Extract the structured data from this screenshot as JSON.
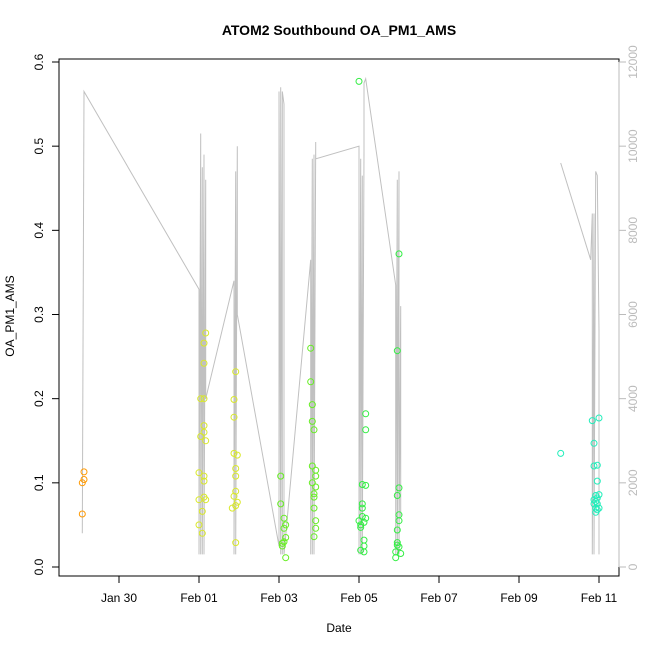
{
  "chart_data": {
    "type": "scatter",
    "title": "ATOM2 Southbound OA_PM1_AMS",
    "xlabel": "Date",
    "ylabel": "OA_PM1_AMS",
    "x_ticks": [
      "Jan 30",
      "Feb 01",
      "Feb 03",
      "Feb 05",
      "Feb 07",
      "Feb 09",
      "Feb 11"
    ],
    "xlim": [
      "Jan 28 12:00",
      "Feb 11 12:00"
    ],
    "ylim": [
      0,
      0.6
    ],
    "y_ticks": [
      "0.0",
      "0.1",
      "0.2",
      "0.3",
      "0.4",
      "0.5",
      "0.6"
    ],
    "y2_ticks": [
      "0",
      "2000",
      "4000",
      "6000",
      "8000",
      "10000",
      "12000"
    ],
    "y2lim": [
      0,
      12000
    ],
    "y2_color": "#bbbbbb",
    "line_color": "#c0c0c0",
    "series": [
      {
        "color": "#ff9900",
        "points": [
          [
            "Jan 29 02:00",
            0.063
          ],
          [
            "Jan 29 02:00",
            0.1
          ],
          [
            "Jan 29 03:00",
            0.104
          ],
          [
            "Jan 29 03:00",
            0.113
          ]
        ]
      },
      {
        "color": "#d9e82a",
        "points": [
          [
            "Feb 01 00:00",
            0.05
          ],
          [
            "Feb 01 00:00",
            0.08
          ],
          [
            "Feb 01 00:00",
            0.112
          ],
          [
            "Feb 01 01:00",
            0.155
          ],
          [
            "Feb 01 01:00",
            0.2
          ],
          [
            "Feb 01 02:00",
            0.04
          ],
          [
            "Feb 01 02:00",
            0.066
          ],
          [
            "Feb 01 03:00",
            0.083
          ],
          [
            "Feb 01 03:00",
            0.102
          ],
          [
            "Feb 01 03:00",
            0.108
          ],
          [
            "Feb 01 03:00",
            0.16
          ],
          [
            "Feb 01 03:00",
            0.168
          ],
          [
            "Feb 01 03:00",
            0.2
          ],
          [
            "Feb 01 03:00",
            0.242
          ],
          [
            "Feb 01 03:00",
            0.266
          ],
          [
            "Feb 01 04:00",
            0.278
          ],
          [
            "Feb 01 04:00",
            0.15
          ],
          [
            "Feb 01 04:00",
            0.08
          ],
          [
            "Feb 01 20:00",
            0.07
          ],
          [
            "Feb 01 21:00",
            0.084
          ],
          [
            "Feb 01 21:00",
            0.135
          ],
          [
            "Feb 01 21:00",
            0.178
          ],
          [
            "Feb 01 21:00",
            0.199
          ],
          [
            "Feb 01 22:00",
            0.029
          ],
          [
            "Feb 01 22:00",
            0.073
          ],
          [
            "Feb 01 22:00",
            0.09
          ],
          [
            "Feb 01 22:00",
            0.108
          ],
          [
            "Feb 01 22:00",
            0.117
          ],
          [
            "Feb 01 22:00",
            0.232
          ],
          [
            "Feb 01 23:00",
            0.133
          ],
          [
            "Feb 01 23:00",
            0.077
          ]
        ]
      },
      {
        "color": "#66ee22",
        "points": [
          [
            "Feb 03 01:00",
            0.108
          ],
          [
            "Feb 03 01:00",
            0.075
          ],
          [
            "Feb 03 02:00",
            0.028
          ],
          [
            "Feb 03 02:00",
            0.025
          ],
          [
            "Feb 03 03:00",
            0.046
          ],
          [
            "Feb 03 03:00",
            0.03
          ],
          [
            "Feb 03 03:00",
            0.058
          ],
          [
            "Feb 03 04:00",
            0.05
          ],
          [
            "Feb 03 04:00",
            0.035
          ],
          [
            "Feb 03 04:00",
            0.011
          ],
          [
            "Feb 03 19:00",
            0.26
          ],
          [
            "Feb 03 19:00",
            0.22
          ],
          [
            "Feb 03 20:00",
            0.193
          ],
          [
            "Feb 03 20:00",
            0.173
          ],
          [
            "Feb 03 20:00",
            0.12
          ],
          [
            "Feb 03 20:00",
            0.1
          ],
          [
            "Feb 03 21:00",
            0.163
          ],
          [
            "Feb 03 21:00",
            0.083
          ],
          [
            "Feb 03 21:00",
            0.087
          ],
          [
            "Feb 03 21:00",
            0.07
          ],
          [
            "Feb 03 21:00",
            0.036
          ],
          [
            "Feb 03 22:00",
            0.115
          ],
          [
            "Feb 03 22:00",
            0.108
          ],
          [
            "Feb 03 22:00",
            0.095
          ],
          [
            "Feb 03 22:00",
            0.055
          ],
          [
            "Feb 03 22:00",
            0.046
          ]
        ]
      },
      {
        "color": "#33ee44",
        "points": [
          [
            "Feb 05 00:00",
            0.577
          ],
          [
            "Feb 05 00:00",
            0.055
          ],
          [
            "Feb 05 01:00",
            0.05
          ],
          [
            "Feb 05 01:00",
            0.047
          ],
          [
            "Feb 05 01:00",
            0.02
          ],
          [
            "Feb 05 02:00",
            0.07
          ],
          [
            "Feb 05 02:00",
            0.075
          ],
          [
            "Feb 05 02:00",
            0.098
          ],
          [
            "Feb 05 02:00",
            0.06
          ],
          [
            "Feb 05 03:00",
            0.053
          ],
          [
            "Feb 05 03:00",
            0.032
          ],
          [
            "Feb 05 03:00",
            0.025
          ],
          [
            "Feb 05 03:00",
            0.018
          ],
          [
            "Feb 05 04:00",
            0.182
          ],
          [
            "Feb 05 04:00",
            0.163
          ],
          [
            "Feb 05 04:00",
            0.097
          ],
          [
            "Feb 05 04:00",
            0.058
          ],
          [
            "Feb 05 22:00",
            0.011
          ],
          [
            "Feb 05 22:00",
            0.018
          ],
          [
            "Feb 05 23:00",
            0.026
          ],
          [
            "Feb 05 23:00",
            0.029
          ],
          [
            "Feb 05 23:00",
            0.044
          ],
          [
            "Feb 05 23:00",
            0.085
          ],
          [
            "Feb 05 23:00",
            0.257
          ],
          [
            "Feb 06 00:00",
            0.372
          ],
          [
            "Feb 06 00:00",
            0.094
          ],
          [
            "Feb 06 00:00",
            0.062
          ],
          [
            "Feb 06 00:00",
            0.055
          ],
          [
            "Feb 06 00:00",
            0.024
          ],
          [
            "Feb 06 01:00",
            0.016
          ]
        ]
      },
      {
        "color": "#22eebb",
        "points": [
          [
            "Feb 10 01:00",
            0.135
          ],
          [
            "Feb 10 20:00",
            0.174
          ],
          [
            "Feb 10 21:00",
            0.147
          ],
          [
            "Feb 10 21:00",
            0.12
          ],
          [
            "Feb 10 21:00",
            0.08
          ],
          [
            "Feb 10 21:00",
            0.075
          ],
          [
            "Feb 10 22:00",
            0.07
          ],
          [
            "Feb 10 22:00",
            0.085
          ],
          [
            "Feb 10 22:00",
            0.078
          ],
          [
            "Feb 10 22:00",
            0.065
          ],
          [
            "Feb 10 23:00",
            0.121
          ],
          [
            "Feb 10 23:00",
            0.102
          ],
          [
            "Feb 10 23:00",
            0.082
          ],
          [
            "Feb 10 23:00",
            0.075
          ],
          [
            "Feb 10 23:00",
            0.068
          ],
          [
            "Feb 11 00:00",
            0.177
          ],
          [
            "Feb 11 00:00",
            0.086
          ],
          [
            "Feb 11 00:00",
            0.07
          ]
        ]
      }
    ],
    "secondary_line": [
      [
        "Jan 29 02:00",
        800
      ],
      [
        "Jan 29 03:00",
        11300
      ],
      [
        "Feb 01 00:00",
        6600
      ],
      [
        "Feb 01 00:00",
        300
      ],
      [
        "Feb 01 01:00",
        10300
      ],
      [
        "Feb 01 01:00",
        300
      ],
      [
        "Feb 01 02:00",
        9500
      ],
      [
        "Feb 01 02:00",
        300
      ],
      [
        "Feb 01 03:00",
        9800
      ],
      [
        "Feb 01 03:00",
        300
      ],
      [
        "Feb 01 04:00",
        9200
      ],
      [
        "Feb 01 04:00",
        4000
      ],
      [
        "Feb 01 21:00",
        6800
      ],
      [
        "Feb 01 21:00",
        300
      ],
      [
        "Feb 01 22:00",
        9400
      ],
      [
        "Feb 01 22:00",
        300
      ],
      [
        "Feb 01 23:00",
        10000
      ],
      [
        "Feb 01 23:00",
        6000
      ],
      [
        "Feb 03 00:00",
        500
      ],
      [
        "Feb 03 00:00",
        11300
      ],
      [
        "Feb 03 01:00",
        300
      ],
      [
        "Feb 03 01:00",
        11400
      ],
      [
        "Feb 03 02:00",
        300
      ],
      [
        "Feb 03 02:00",
        11300
      ],
      [
        "Feb 03 03:00",
        11000
      ],
      [
        "Feb 03 03:00",
        300
      ],
      [
        "Feb 03 19:00",
        7300
      ],
      [
        "Feb 03 19:00",
        300
      ],
      [
        "Feb 03 20:00",
        9700
      ],
      [
        "Feb 03 20:00",
        300
      ],
      [
        "Feb 03 21:00",
        9800
      ],
      [
        "Feb 03 21:00",
        300
      ],
      [
        "Feb 03 22:00",
        10100
      ],
      [
        "Feb 03 22:00",
        9700
      ],
      [
        "Feb 05 00:00",
        10000
      ],
      [
        "Feb 05 00:00",
        300
      ],
      [
        "Feb 05 01:00",
        9700
      ],
      [
        "Feb 05 01:00",
        300
      ],
      [
        "Feb 05 02:00",
        9300
      ],
      [
        "Feb 05 02:00",
        300
      ],
      [
        "Feb 05 03:00",
        9900
      ],
      [
        "Feb 05 03:00",
        11500
      ],
      [
        "Feb 05 04:00",
        11600
      ],
      [
        "Feb 05 22:00",
        6700
      ],
      [
        "Feb 05 22:00",
        300
      ],
      [
        "Feb 05 23:00",
        9200
      ],
      [
        "Feb 05 23:00",
        300
      ],
      [
        "Feb 06 00:00",
        9400
      ],
      [
        "Feb 06 00:00",
        300
      ],
      [
        "Feb 06 01:00",
        6200
      ],
      [
        "Feb 06 01:00",
        1200
      ]
    ],
    "secondary_line_2": [
      [
        "Feb 10 01:00",
        9600
      ],
      [
        "Feb 10 19:00",
        7300
      ],
      [
        "Feb 10 20:00",
        8400
      ],
      [
        "Feb 10 20:00",
        300
      ],
      [
        "Feb 10 21:00",
        8400
      ],
      [
        "Feb 10 21:00",
        300
      ],
      [
        "Feb 10 22:00",
        9400
      ],
      [
        "Feb 10 23:00",
        9300
      ],
      [
        "Feb 11 00:00",
        5600
      ],
      [
        "Feb 11 00:00",
        300
      ]
    ]
  }
}
